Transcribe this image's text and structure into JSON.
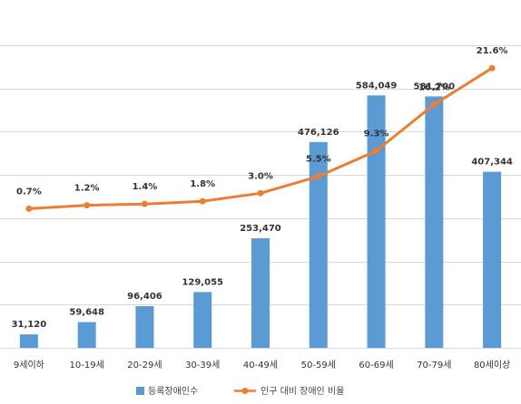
{
  "chart_data": {
    "type": "bar",
    "categories": [
      "9세이하",
      "10-19세",
      "20-29세",
      "30-39세",
      "40-49세",
      "50-59세",
      "60-69세",
      "70-79세",
      "80세이상"
    ],
    "series": [
      {
        "name": "등록장애인수",
        "type": "bar",
        "color": "#5B9BD5",
        "values": [
          31120,
          59648,
          96406,
          129055,
          253470,
          476126,
          584049,
          581700,
          407344
        ],
        "labels": [
          "31,120",
          "59,648",
          "96,406",
          "129,055",
          "253,470",
          "476,126",
          "584,049",
          "581,700",
          "407,344"
        ]
      },
      {
        "name": "인구 대비 장애인 비율",
        "type": "line",
        "color": "#ED7D31",
        "values": [
          0.7,
          1.2,
          1.4,
          1.8,
          3.0,
          5.5,
          9.3,
          16.2,
          21.6
        ],
        "labels": [
          "0.7%",
          "1.2%",
          "1.4%",
          "1.8%",
          "3.0%",
          "5.5%",
          "9.3%",
          "16.2%",
          "21.6%"
        ]
      }
    ],
    "ylim_bar": [
      0,
      700000
    ],
    "ylim_line": [
      -20,
      25
    ],
    "grid": true,
    "legend_position": "bottom"
  }
}
